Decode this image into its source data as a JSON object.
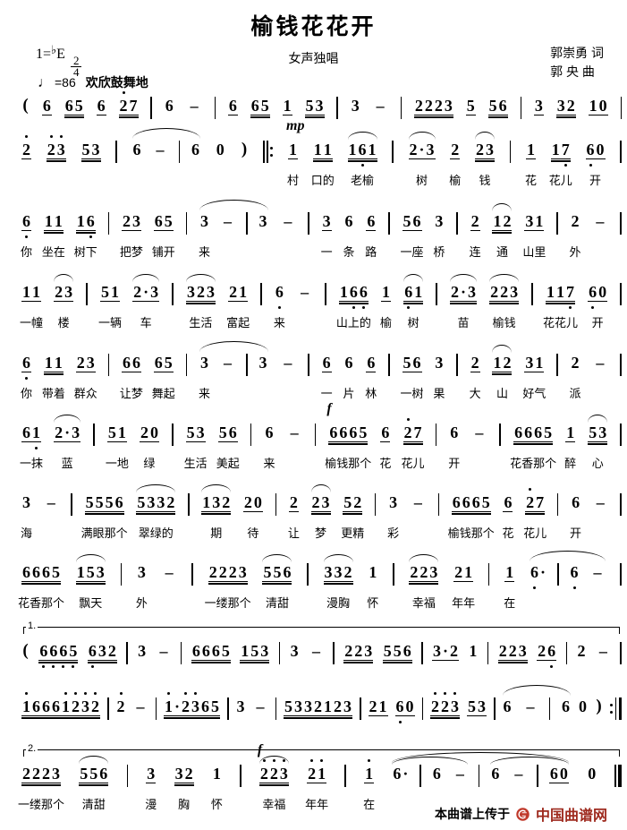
{
  "header": {
    "title": "榆钱花花开",
    "subtitle": "女声独唱",
    "lyricist": "郭崇勇 词",
    "composer": "郭  央 曲",
    "key_prefix": "1=",
    "key_flat": "♭",
    "key_note": "E",
    "meter_num": "2",
    "meter_den": "4",
    "tempo_note": "♩",
    "tempo_value": "=86",
    "expression": "欢欣鼓舞地"
  },
  "footer": {
    "prefix": "本曲谱上传于",
    "brand": "中国曲谱网",
    "brand_color": "#9e2a1e",
    "logo_icon": "site-logo-icon",
    "logo_color": "#c0392b"
  },
  "lines": [
    {
      "tokens": [
        {
          "v": "("
        },
        {
          "v": "6",
          "u": 1
        },
        {
          "v": "65",
          "u": 2
        },
        {
          "v": "6",
          "u": 1
        },
        {
          "v": "2'7",
          "u": 2
        },
        {
          "t": "bar"
        },
        {
          "v": "6"
        },
        {
          "v": "-"
        },
        {
          "t": "bar"
        },
        {
          "v": "6",
          "u": 1
        },
        {
          "v": "65",
          "u": 2
        },
        {
          "v": "1",
          "u": 1
        },
        {
          "v": "53",
          "u": 2
        },
        {
          "t": "bar"
        },
        {
          "v": "3"
        },
        {
          "v": "-"
        },
        {
          "t": "bar"
        },
        {
          "v": "2223",
          "u": 2
        },
        {
          "v": "5",
          "u": 1
        },
        {
          "v": "56",
          "u": 2
        },
        {
          "t": "bar"
        },
        {
          "v": "3",
          "u": 1
        },
        {
          "v": "32",
          "u": 2
        },
        {
          "v": "10",
          "u": 1
        },
        {
          "t": "bar"
        }
      ]
    },
    {
      "tokens": [
        {
          "v": "2'",
          "u": 1
        },
        {
          "v": "2'3'",
          "u": 2
        },
        {
          "v": "53",
          "u": 2
        },
        {
          "t": "bar"
        },
        {
          "g": [
            {
              "v": "6"
            },
            {
              "v": "-"
            },
            {
              "t": "bar"
            },
            {
              "v": "6"
            }
          ],
          "a": 1
        },
        {
          "v": "0"
        },
        {
          "v": ")"
        },
        {
          "t": "rs"
        },
        {
          "v": "1",
          "u": 1,
          "d": "mp",
          "y": "村"
        },
        {
          "v": "11",
          "u": 2,
          "y": "口的"
        },
        {
          "v": "16,1",
          "u": 2,
          "a": 1,
          "y": "老榆"
        },
        {
          "t": "bar"
        },
        {
          "v": "2.3",
          "u": 1,
          "a": 1,
          "y": "树"
        },
        {
          "v": "2",
          "u": 1,
          "y": "榆"
        },
        {
          "v": "23",
          "u": 2,
          "a": 1,
          "y": "钱"
        },
        {
          "t": "bar"
        },
        {
          "v": "1",
          "u": 1,
          "y": "花"
        },
        {
          "v": "17,",
          "u": 2,
          "y": "花儿"
        },
        {
          "v": "6,0",
          "u": 1,
          "y": "开"
        },
        {
          "t": "bar"
        }
      ]
    },
    {
      "tokens": [
        {
          "v": "6,",
          "u": 1,
          "y": "你"
        },
        {
          "v": "11",
          "u": 2,
          "y": "坐在"
        },
        {
          "v": "16,",
          "u": 2,
          "y": "树下"
        },
        {
          "t": "bar"
        },
        {
          "v": "23",
          "u": 1,
          "y": "把梦"
        },
        {
          "v": "65",
          "u": 1,
          "y": "铺开"
        },
        {
          "t": "bar"
        },
        {
          "g": [
            {
              "v": "3",
              "y": "来"
            },
            {
              "v": "-"
            },
            {
              "t": "bar"
            },
            {
              "v": "3"
            }
          ],
          "a": 1
        },
        {
          "v": "-"
        },
        {
          "t": "bar"
        },
        {
          "v": "3",
          "u": 1,
          "y": "一"
        },
        {
          "v": "6",
          "y": "条"
        },
        {
          "v": "6",
          "u": 1,
          "y": "路"
        },
        {
          "t": "bar"
        },
        {
          "v": "56",
          "u": 1,
          "y": "一座"
        },
        {
          "v": "3",
          "y": "桥"
        },
        {
          "t": "bar"
        },
        {
          "v": "2",
          "u": 1,
          "y": "连"
        },
        {
          "v": "12",
          "u": 2,
          "a": 1,
          "y": "通"
        },
        {
          "v": "31",
          "u": 1,
          "y": "山里"
        },
        {
          "t": "bar"
        },
        {
          "v": "2",
          "y": "外"
        },
        {
          "v": "-"
        },
        {
          "t": "bar"
        }
      ]
    },
    {
      "tokens": [
        {
          "v": "11",
          "u": 1,
          "y": "一幢"
        },
        {
          "v": "23",
          "u": 1,
          "a": 1,
          "y": "楼"
        },
        {
          "t": "bar"
        },
        {
          "v": "51",
          "u": 1,
          "y": "一辆"
        },
        {
          "v": "2.3",
          "u": 1,
          "a": 1,
          "y": "车"
        },
        {
          "t": "bar"
        },
        {
          "v": "323",
          "u": 2,
          "a": 1,
          "y": "生活"
        },
        {
          "v": "21",
          "u": 1,
          "y": "富起"
        },
        {
          "t": "bar"
        },
        {
          "v": "6,",
          "y": "来"
        },
        {
          "v": "-"
        },
        {
          "t": "bar"
        },
        {
          "v": "16,6,",
          "u": 2,
          "y": "山上的"
        },
        {
          "v": "1",
          "u": 1,
          "y": "榆"
        },
        {
          "v": "6,1",
          "u": 2,
          "a": 1,
          "y": "树"
        },
        {
          "t": "bar"
        },
        {
          "v": "2.3",
          "u": 2,
          "a": 1,
          "y": "苗"
        },
        {
          "v": "223",
          "u": 2,
          "a": 1,
          "y": "榆钱"
        },
        {
          "t": "bar"
        },
        {
          "v": "117,",
          "u": 2,
          "y": "花花儿"
        },
        {
          "v": "6,0",
          "u": 1,
          "y": "开"
        },
        {
          "t": "bar"
        }
      ]
    },
    {
      "tokens": [
        {
          "v": "6,",
          "u": 1,
          "y": "你"
        },
        {
          "v": "11",
          "u": 2,
          "y": "带着"
        },
        {
          "v": "23",
          "u": 1,
          "y": "群众"
        },
        {
          "t": "bar"
        },
        {
          "v": "66",
          "u": 1,
          "y": "让梦"
        },
        {
          "v": "65",
          "u": 1,
          "y": "舞起"
        },
        {
          "t": "bar"
        },
        {
          "g": [
            {
              "v": "3",
              "y": "来"
            },
            {
              "v": "-"
            },
            {
              "t": "bar"
            },
            {
              "v": "3"
            }
          ],
          "a": 1
        },
        {
          "v": "-"
        },
        {
          "t": "bar"
        },
        {
          "v": "6",
          "u": 1,
          "y": "一"
        },
        {
          "v": "6",
          "y": "片"
        },
        {
          "v": "6",
          "u": 1,
          "y": "林"
        },
        {
          "t": "bar"
        },
        {
          "v": "56",
          "u": 1,
          "y": "一树"
        },
        {
          "v": "3",
          "y": "果"
        },
        {
          "t": "bar"
        },
        {
          "v": "2",
          "u": 1,
          "y": "大"
        },
        {
          "v": "12",
          "u": 2,
          "a": 1,
          "y": "山"
        },
        {
          "v": "31",
          "u": 1,
          "y": "好气"
        },
        {
          "t": "bar"
        },
        {
          "v": "2",
          "y": "派"
        },
        {
          "v": "-"
        },
        {
          "t": "bar"
        }
      ]
    },
    {
      "tokens": [
        {
          "v": "61,",
          "u": 1,
          "y": "一抹"
        },
        {
          "v": "2.3",
          "u": 1,
          "a": 1,
          "y": "蓝"
        },
        {
          "t": "bar"
        },
        {
          "v": "51",
          "u": 1,
          "y": "一地"
        },
        {
          "v": "20",
          "u": 1,
          "y": "绿"
        },
        {
          "t": "bar"
        },
        {
          "v": "53",
          "u": 1,
          "y": "生活"
        },
        {
          "v": "56",
          "u": 1,
          "y": "美起"
        },
        {
          "t": "bar"
        },
        {
          "v": "6",
          "y": "来"
        },
        {
          "v": "-"
        },
        {
          "t": "bar"
        },
        {
          "v": "6665",
          "u": 2,
          "d": "f",
          "y": "榆钱那个"
        },
        {
          "v": "6",
          "u": 1,
          "y": "花"
        },
        {
          "v": "2'7",
          "u": 2,
          "y": "花儿"
        },
        {
          "t": "bar"
        },
        {
          "v": "6",
          "y": "开"
        },
        {
          "v": "-"
        },
        {
          "t": "bar"
        },
        {
          "v": "6665",
          "u": 2,
          "y": "花香那个"
        },
        {
          "v": "1",
          "u": 1,
          "y": "醉"
        },
        {
          "v": "53",
          "u": 2,
          "a": 1,
          "y": "心"
        },
        {
          "t": "bar"
        }
      ]
    },
    {
      "tokens": [
        {
          "v": "3",
          "y": "海"
        },
        {
          "v": "-"
        },
        {
          "t": "bar"
        },
        {
          "v": "5556",
          "u": 2,
          "y": "满眼那个"
        },
        {
          "v": "5332",
          "u": 2,
          "a": 1,
          "y": "翠绿的"
        },
        {
          "t": "bar"
        },
        {
          "v": "132",
          "u": 2,
          "a": 1,
          "y": "期"
        },
        {
          "v": "20",
          "u": 1,
          "y": "待"
        },
        {
          "t": "bar"
        },
        {
          "v": "2",
          "u": 1,
          "y": "让"
        },
        {
          "v": "23",
          "u": 2,
          "a": 1,
          "y": "梦"
        },
        {
          "v": "52",
          "u": 2,
          "y": "更精"
        },
        {
          "t": "bar"
        },
        {
          "v": "3",
          "y": "彩"
        },
        {
          "v": "-"
        },
        {
          "t": "bar"
        },
        {
          "v": "6665",
          "u": 2,
          "y": "榆钱那个"
        },
        {
          "v": "6",
          "u": 1,
          "y": "花"
        },
        {
          "v": "2'7",
          "u": 2,
          "y": "花儿"
        },
        {
          "t": "bar"
        },
        {
          "v": "6",
          "y": "开"
        },
        {
          "v": "-"
        },
        {
          "t": "bar"
        }
      ]
    },
    {
      "tokens": [
        {
          "v": "6665",
          "u": 2,
          "y": "花香那个"
        },
        {
          "v": "153",
          "u": 2,
          "a": 1,
          "y": "飘天"
        },
        {
          "t": "bar"
        },
        {
          "v": "3",
          "y": "外"
        },
        {
          "v": "-"
        },
        {
          "t": "bar"
        },
        {
          "v": "2223",
          "u": 2,
          "y": "一缕那个"
        },
        {
          "v": "556",
          "u": 2,
          "a": 1,
          "y": "清甜"
        },
        {
          "t": "bar"
        },
        {
          "v": "332",
          "u": 2,
          "a": 1,
          "y": "漫胸"
        },
        {
          "v": "1",
          "y": "怀"
        },
        {
          "t": "bar"
        },
        {
          "v": "223",
          "u": 2,
          "a": 1,
          "y": "幸福"
        },
        {
          "v": "21",
          "u": 1,
          "y": "年年"
        },
        {
          "t": "bar"
        },
        {
          "v": "1",
          "u": 1,
          "y": "在"
        },
        {
          "g": [
            {
              "v": "6,."
            },
            {
              "t": "bar"
            },
            {
              "v": "6,"
            },
            {
              "v": "-"
            }
          ],
          "a": 1
        },
        {
          "t": "bar"
        }
      ]
    },
    {
      "volta": "1.",
      "tokens": [
        {
          "v": "("
        },
        {
          "v": "6,6,6,5,",
          "u": 2
        },
        {
          "v": "6,32",
          "u": 2
        },
        {
          "t": "bar"
        },
        {
          "v": "3"
        },
        {
          "v": "-"
        },
        {
          "t": "bar"
        },
        {
          "v": "6665",
          "u": 2
        },
        {
          "v": "153",
          "u": 2
        },
        {
          "t": "bar"
        },
        {
          "v": "3"
        },
        {
          "v": "-"
        },
        {
          "t": "bar"
        },
        {
          "v": "223",
          "u": 2
        },
        {
          "v": "556",
          "u": 2
        },
        {
          "t": "bar"
        },
        {
          "v": "3.2",
          "u": 1
        },
        {
          "v": "1"
        },
        {
          "t": "bar"
        },
        {
          "v": "223",
          "u": 2
        },
        {
          "v": "26,",
          "u": 1
        },
        {
          "t": "bar"
        },
        {
          "v": "2"
        },
        {
          "v": "-"
        },
        {
          "t": "bar"
        }
      ]
    },
    {
      "tokens": [
        {
          "v": "1'6661'2'3'2'",
          "u": 2
        },
        {
          "t": "bar"
        },
        {
          "v": "2'"
        },
        {
          "v": "-"
        },
        {
          "t": "bar"
        },
        {
          "v": "1'.2'3'65",
          "u": 2
        },
        {
          "t": "bar"
        },
        {
          "v": "3"
        },
        {
          "v": "-"
        },
        {
          "t": "bar"
        },
        {
          "v": "5332123",
          "u": 2
        },
        {
          "t": "bar"
        },
        {
          "v": "21",
          "u": 1
        },
        {
          "v": "6,0",
          "u": 1
        },
        {
          "t": "bar"
        },
        {
          "v": "2'2'3'",
          "u": 2
        },
        {
          "v": "53",
          "u": 1
        },
        {
          "t": "bar"
        },
        {
          "g": [
            {
              "v": "6"
            },
            {
              "v": "-"
            },
            {
              "t": "bar"
            },
            {
              "v": "6"
            }
          ],
          "a": 1
        },
        {
          "v": "0"
        },
        {
          "v": ")"
        },
        {
          "t": "re"
        }
      ]
    },
    {
      "volta": "2.",
      "tokens": [
        {
          "v": "2223",
          "u": 2,
          "y": "一缕那个"
        },
        {
          "v": "556",
          "u": 2,
          "a": 1,
          "y": "清甜"
        },
        {
          "t": "bar"
        },
        {
          "v": "3",
          "u": 1,
          "y": "漫"
        },
        {
          "v": "32",
          "u": 2,
          "y": "胸"
        },
        {
          "v": "1",
          "y": "怀"
        },
        {
          "t": "bar"
        },
        {
          "v": "2'2'3'",
          "u": 2,
          "a": 1,
          "d": "f",
          "y": "幸福"
        },
        {
          "v": "2'1'",
          "u": 1,
          "y": "年年"
        },
        {
          "t": "bar"
        },
        {
          "v": "1'",
          "u": 1,
          "y": "在"
        },
        {
          "g": [
            {
              "g": [
                {
                  "v": "6."
                },
                {
                  "t": "bar"
                },
                {
                  "v": "6"
                },
                {
                  "v": "-"
                }
              ],
              "a": 1
            },
            {
              "t": "bar"
            },
            {
              "g": [
                {
                  "v": "6"
                },
                {
                  "v": "-"
                },
                {
                  "t": "bar"
                },
                {
                  "v": "60",
                  "u": 1
                }
              ],
              "a": 1
            }
          ],
          "a": 1
        },
        {
          "v": "0"
        },
        {
          "t": "fin"
        }
      ]
    }
  ]
}
